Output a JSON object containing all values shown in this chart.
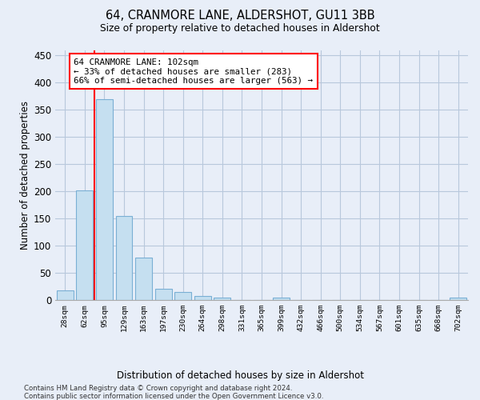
{
  "title": "64, CRANMORE LANE, ALDERSHOT, GU11 3BB",
  "subtitle": "Size of property relative to detached houses in Aldershot",
  "xlabel": "Distribution of detached houses by size in Aldershot",
  "ylabel": "Number of detached properties",
  "bar_labels": [
    "28sqm",
    "62sqm",
    "95sqm",
    "129sqm",
    "163sqm",
    "197sqm",
    "230sqm",
    "264sqm",
    "298sqm",
    "331sqm",
    "365sqm",
    "399sqm",
    "432sqm",
    "466sqm",
    "500sqm",
    "534sqm",
    "567sqm",
    "601sqm",
    "635sqm",
    "668sqm",
    "702sqm"
  ],
  "bar_values": [
    18,
    202,
    370,
    155,
    78,
    21,
    15,
    8,
    5,
    0,
    0,
    5,
    0,
    0,
    0,
    0,
    0,
    0,
    0,
    0,
    5
  ],
  "bar_color": "#c5dff0",
  "bar_edge_color": "#7aafd4",
  "background_color": "#e8eef8",
  "grid_color": "#b8c8dc",
  "property_line_color": "red",
  "annotation_text": "64 CRANMORE LANE: 102sqm\n← 33% of detached houses are smaller (283)\n66% of semi-detached houses are larger (563) →",
  "annotation_box_color": "white",
  "annotation_box_edge": "red",
  "ylim": [
    0,
    460
  ],
  "yticks": [
    0,
    50,
    100,
    150,
    200,
    250,
    300,
    350,
    400,
    450
  ],
  "footer_line1": "Contains HM Land Registry data © Crown copyright and database right 2024.",
  "footer_line2": "Contains public sector information licensed under the Open Government Licence v3.0."
}
